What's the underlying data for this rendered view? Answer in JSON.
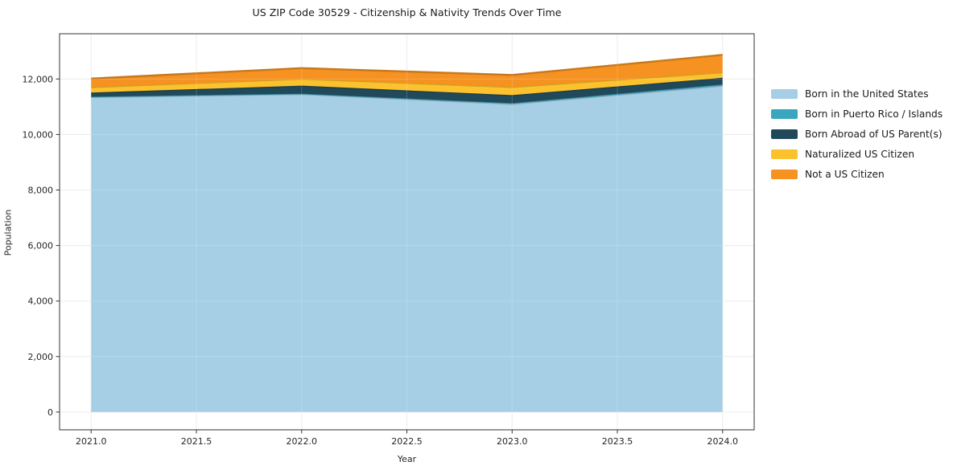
{
  "chart_data": {
    "type": "area",
    "stacked": true,
    "title": "US ZIP Code 30529 - Citizenship & Nativity Trends Over Time",
    "xlabel": "Year",
    "ylabel": "Population",
    "x": [
      2021,
      2022,
      2023,
      2024
    ],
    "series": [
      {
        "name": "Born in the United States",
        "color": "#a6cfe5",
        "values": [
          11350,
          11460,
          11100,
          11760
        ]
      },
      {
        "name": "Born in Puerto Rico / Islands",
        "color": "#3aa5bf",
        "values": [
          15,
          10,
          30,
          45
        ]
      },
      {
        "name": "Born Abroad of US Parent(s)",
        "color": "#20495a",
        "values": [
          145,
          290,
          290,
          240
        ]
      },
      {
        "name": "Naturalized US Citizen",
        "color": "#fcc22d",
        "values": [
          195,
          245,
          290,
          195
        ]
      },
      {
        "name": "Not a US Citizen",
        "color": "#f59221",
        "values": [
          310,
          385,
          435,
          630
        ]
      }
    ],
    "stack_totals": [
      12015,
      12390,
      12145,
      12870
    ],
    "xlim": [
      2020.85,
      2024.15
    ],
    "ylim": [
      -640,
      13630
    ],
    "xticks": {
      "values": [
        2021.0,
        2021.5,
        2022.0,
        2022.5,
        2023.0,
        2023.5,
        2024.0
      ],
      "labels": [
        "2021.0",
        "2021.5",
        "2022.0",
        "2022.5",
        "2023.0",
        "2023.5",
        "2024.0"
      ]
    },
    "yticks": {
      "values": [
        0,
        2000,
        4000,
        6000,
        8000,
        10000,
        12000
      ],
      "labels": [
        "0",
        "2,000",
        "4,000",
        "6,000",
        "8,000",
        "10,000",
        "12,000"
      ]
    },
    "grid": true,
    "legend_position": "right"
  }
}
